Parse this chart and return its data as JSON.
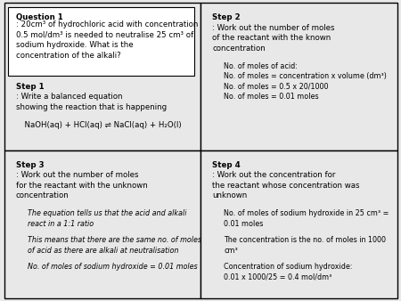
{
  "bg_color": "#e8e8e8",
  "box_color": "#ffffff",
  "border_color": "#000000",
  "q1_title": "Question 1",
  "q1_text": ": 20cm³ of hydrochloric acid with concentration 0.5 mol/dm³ is needed to neutralise 25 cm³ of sodium hydroxide. What is the concentration of the alkali?",
  "step1_title": "Step 1",
  "step1_text": ": Write a balanced equation\nshowing the reaction that is happening",
  "step1_equation": "  NaOH(aq) + HCl(aq) ⇌ NaCl(aq) + H₂O(l)",
  "step2_title": "Step 2",
  "step2_text": ": Work out the number of moles\nof the reactant with the known\nconcentration",
  "step2_body": "   No. of moles of acid:\n   No. of moles = concentration x volume (dm³)\n   No. of moles = 0.5 x 20/1000\n   No. of moles = 0.01 moles",
  "step3_title": "Step 3",
  "step3_text": ": Work out the number of moles\nfor the reactant with the unknown\nconcentration",
  "step3_body": "   The equation tells us that the acid and alkali\n   react in a 1:1 ratio\n\n   This means that there are the same no. of moles\n   of acid as there are alkali at neutralisation\n\n   No. of moles of sodium hydroxide = 0.01 moles",
  "step4_title": "Step 4",
  "step4_text": ": Work out the concentration for\nthe reactant whose concentration was\nunknown",
  "step4_body": "   No. of moles of sodium hydroxide in 25 cm³ =\n   0.01 moles\n\n   The concentration is the no. of moles in 1000\n   cm³\n\n   Concentration of sodium hydroxide:\n   0.01 x 1000/25 = 0.4 mol/dm³"
}
